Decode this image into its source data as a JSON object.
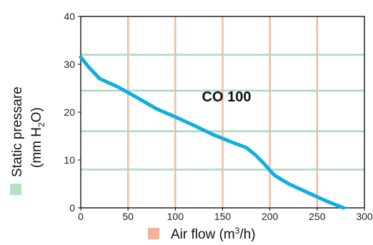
{
  "chart_data": {
    "type": "line",
    "xlabel": "Air flow (m",
    "xlabel_sup": "3",
    "xlabel_end": "/h)",
    "ylabel_line1": "Static pressare",
    "ylabel_line2_start": "(mm H",
    "ylabel_line2_sub": "2",
    "ylabel_line2_end": "O)",
    "annotation": "CO 100",
    "xlim": [
      0,
      300
    ],
    "ylim": [
      0,
      40
    ],
    "x_ticks": [
      0,
      50,
      100,
      150,
      200,
      250,
      300
    ],
    "y_ticks": [
      0,
      10,
      20,
      30,
      40
    ],
    "x_gridlines": [
      50,
      100,
      150,
      200,
      250
    ],
    "y_gridlines": [
      8,
      16,
      24.5,
      32
    ],
    "grid": true,
    "series": [
      {
        "x": [
          0,
          8,
          20,
          40,
          60,
          80,
          100,
          120,
          140,
          160,
          175,
          185,
          195,
          200,
          205,
          220,
          240,
          260,
          278
        ],
        "y": [
          31.5,
          29.5,
          27.0,
          25.2,
          23.0,
          20.7,
          19.0,
          17.2,
          15.3,
          13.7,
          12.6,
          11.0,
          9.0,
          7.8,
          6.8,
          5.0,
          3.2,
          1.4,
          0.0
        ]
      }
    ],
    "colors": {
      "series": "#12aee0",
      "vertical_grid": "#f5b8a0",
      "horizontal_grid": "#a9dbbf",
      "axis": "#000000",
      "xlabel_marker": "#f4b29b",
      "ylabel_marker": "#b5e1c4"
    }
  }
}
